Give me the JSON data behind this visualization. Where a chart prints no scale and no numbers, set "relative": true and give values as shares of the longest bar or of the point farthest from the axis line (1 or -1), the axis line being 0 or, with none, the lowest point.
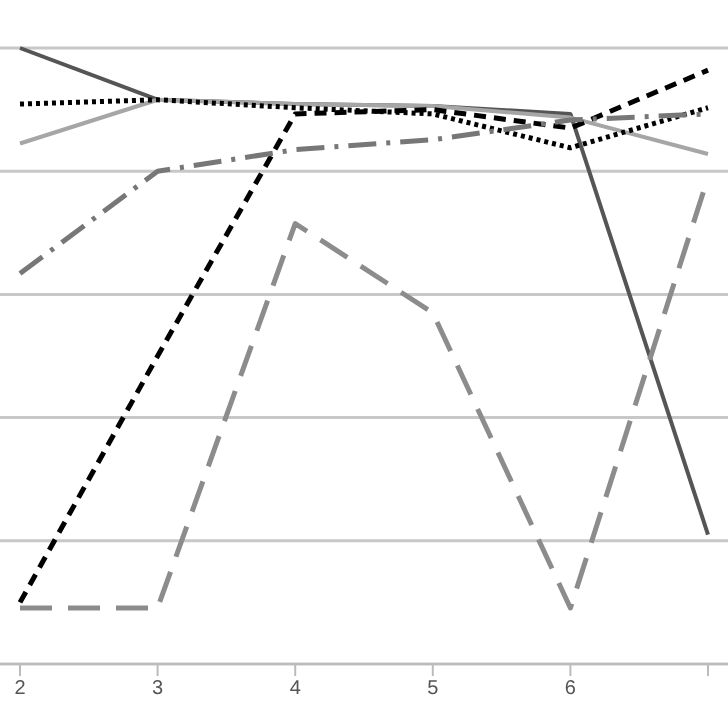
{
  "chart_data": {
    "type": "line",
    "relative": true,
    "grid": "y",
    "marker": "none",
    "categories": [
      "2",
      "3",
      "4",
      "5",
      "6",
      null
    ],
    "series": [
      {
        "color": "#555555",
        "line_style": "solid",
        "values": [
          1.0,
          0.916,
          0.909,
          0.906,
          0.893,
          0.21
        ]
      },
      {
        "color": "#a6a6a6",
        "line_style": "solid",
        "values": [
          0.845,
          0.916,
          0.909,
          0.906,
          0.887,
          0.828
        ]
      },
      {
        "color": "#000000",
        "line_style": "dotted",
        "values": [
          0.909,
          0.916,
          0.903,
          0.893,
          0.838,
          0.903
        ]
      },
      {
        "color": "#000000",
        "line_style": "dashed",
        "values": [
          0.1,
          0.5,
          0.893,
          0.9,
          0.87,
          0.964
        ]
      },
      {
        "color": "#777777",
        "line_style": "dashdot",
        "values": [
          0.634,
          0.8,
          0.835,
          0.851,
          0.883,
          0.893
        ]
      },
      {
        "color": "#8c8c8c",
        "line_style": "longdash",
        "values": [
          0.091,
          0.091,
          0.715,
          0.57,
          0.091,
          0.79
        ]
      }
    ]
  }
}
